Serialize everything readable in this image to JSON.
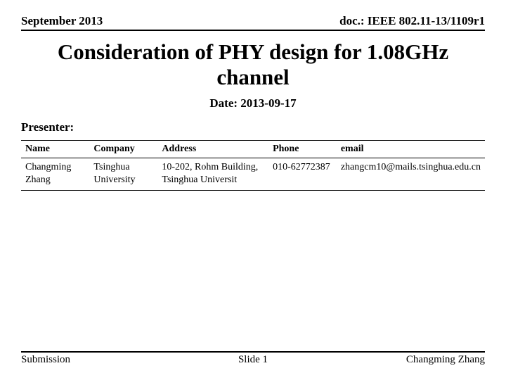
{
  "header": {
    "left": "September 2013",
    "right": "doc.: IEEE 802.11-13/1109r1"
  },
  "title": "Consideration of PHY design for 1.08GHz channel",
  "date_line": "Date: 2013-09-17",
  "presenter_label": "Presenter:",
  "table": {
    "columns": [
      "Name",
      "Company",
      "Address",
      "Phone",
      "email"
    ],
    "rows": [
      {
        "name": "Changming Zhang",
        "company": "Tsinghua University",
        "address": "10-202, Rohm Building, Tsinghua Universit",
        "phone": "010-62772387",
        "email": "zhangcm10@mails.tsinghua.edu.cn"
      }
    ]
  },
  "footer": {
    "left": "Submission",
    "center": "Slide 1",
    "right": "Changming Zhang"
  }
}
